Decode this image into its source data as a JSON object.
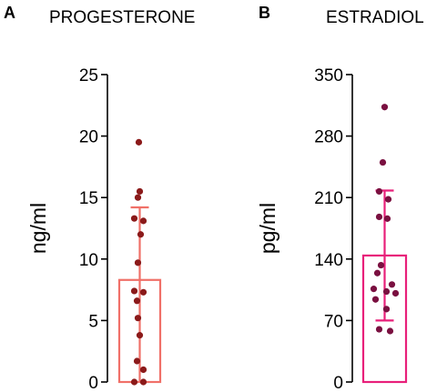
{
  "chart_data": [
    {
      "panel": "A",
      "type": "bar",
      "title": "PROGESTERONE",
      "ylabel": "ng/ml",
      "ylim": [
        0,
        25
      ],
      "yticks": [
        0,
        5,
        10,
        15,
        20,
        25
      ],
      "bar_mean": 8.3,
      "error_upper": 14.2,
      "error_lower": 0,
      "points": [
        19.5,
        15.5,
        15.0,
        13.3,
        13.1,
        12.0,
        9.7,
        7.4,
        7.3,
        6.6,
        5.2,
        3.8,
        1.7,
        1.0,
        0.0,
        0.0
      ],
      "bar_color": "#f07068",
      "point_color": "#8b1a1a"
    },
    {
      "panel": "B",
      "type": "bar",
      "title": "ESTRADIOL",
      "ylabel": "pg/ml",
      "ylim": [
        0,
        350
      ],
      "yticks": [
        0,
        70,
        140,
        210,
        280,
        350
      ],
      "bar_mean": 144,
      "error_upper": 218,
      "error_lower": 70,
      "points": [
        313,
        250,
        217,
        208,
        188,
        186,
        133,
        124,
        111,
        106,
        103,
        101,
        94,
        83,
        60,
        58
      ],
      "bar_color": "#e8207a",
      "point_color": "#7a1040"
    }
  ]
}
